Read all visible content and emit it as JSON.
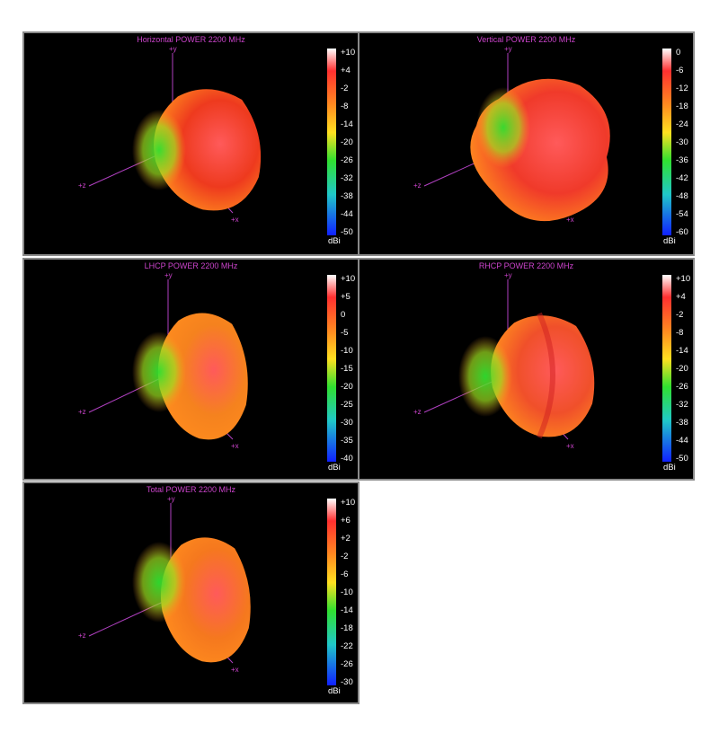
{
  "chart_data": [
    {
      "type": "3d-radiation-pattern",
      "title": "Horizontal POWER 2200  MHz",
      "axes": [
        "+y",
        "+z",
        "+x"
      ],
      "colorbar": {
        "unit": "dBi",
        "ticks": [
          "+10",
          "+4",
          "-2",
          "-8",
          "-14",
          "-20",
          "-26",
          "-32",
          "-38",
          "-44",
          "-50"
        ],
        "range": [
          -50,
          10
        ]
      },
      "dominant_color": "#ee3a1e"
    },
    {
      "type": "3d-radiation-pattern",
      "title": "Vertical POWER 2200  MHz",
      "axes": [
        "+y",
        "+z",
        "+x"
      ],
      "colorbar": {
        "unit": "dBi",
        "ticks": [
          "0",
          "-6",
          "-12",
          "-18",
          "-24",
          "-30",
          "-36",
          "-42",
          "-48",
          "-54",
          "-60"
        ],
        "range": [
          -60,
          0
        ]
      },
      "dominant_color": "#f03a2a"
    },
    {
      "type": "3d-radiation-pattern",
      "title": "LHCP POWER 2200  MHz",
      "axes": [
        "+y",
        "+z",
        "+x"
      ],
      "colorbar": {
        "unit": "dBi",
        "ticks": [
          "+10",
          "+5",
          "0",
          "-5",
          "-10",
          "-15",
          "-20",
          "-25",
          "-30",
          "-35",
          "-40"
        ],
        "range": [
          -40,
          10
        ]
      },
      "dominant_color": "#f5821e"
    },
    {
      "type": "3d-radiation-pattern",
      "title": "RHCP POWER 2200  MHz",
      "axes": [
        "+y",
        "+z",
        "+x"
      ],
      "colorbar": {
        "unit": "dBi",
        "ticks": [
          "+10",
          "+4",
          "-2",
          "-8",
          "-14",
          "-20",
          "-26",
          "-32",
          "-38",
          "-44",
          "-50"
        ],
        "range": [
          -50,
          10
        ]
      },
      "dominant_color": "#f0502a"
    },
    {
      "type": "3d-radiation-pattern",
      "title": "Total POWER 2200  MHz",
      "axes": [
        "+y",
        "+z",
        "+x"
      ],
      "colorbar": {
        "unit": "dBi",
        "ticks": [
          "+10",
          "+6",
          "+2",
          "-2",
          "-6",
          "-10",
          "-14",
          "-18",
          "-22",
          "-26",
          "-30"
        ],
        "range": [
          -30,
          10
        ]
      },
      "dominant_color": "#f5781e"
    }
  ]
}
